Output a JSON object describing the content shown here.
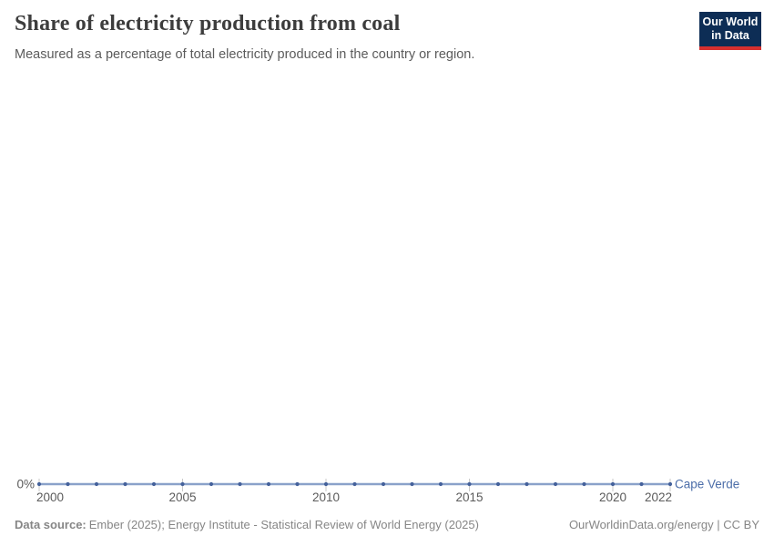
{
  "header": {
    "title": "Share of electricity production from coal",
    "subtitle": "Measured as a percentage of total electricity produced in the country or region.",
    "logo": {
      "line1": "Our World",
      "line2": "in Data"
    }
  },
  "chart_data": {
    "type": "line",
    "title": "Share of electricity production from coal",
    "subtitle": "Measured as a percentage of total electricity produced in the country or region.",
    "series": [
      {
        "name": "Cape Verde",
        "x": [
          2000,
          2001,
          2002,
          2003,
          2004,
          2005,
          2006,
          2007,
          2008,
          2009,
          2010,
          2011,
          2012,
          2013,
          2014,
          2015,
          2016,
          2017,
          2018,
          2019,
          2020,
          2021,
          2022
        ],
        "values": [
          0,
          0,
          0,
          0,
          0,
          0,
          0,
          0,
          0,
          0,
          0,
          0,
          0,
          0,
          0,
          0,
          0,
          0,
          0,
          0,
          0,
          0,
          0
        ]
      }
    ],
    "x_range": [
      2000,
      2022
    ],
    "x_tick_years": [
      2000,
      2005,
      2010,
      2015,
      2020,
      2022
    ],
    "x_tick_labels": [
      "2000",
      "2005",
      "2010",
      "2015",
      "2020",
      "2022"
    ],
    "y_tick_labels": [
      "0%"
    ],
    "y_axis_unit": "%",
    "grid": false,
    "legend_position": "end-of-line-label",
    "colors": {
      "line": "#8aa2ca",
      "marker": "#44619b",
      "series_label": "#4c6ea9",
      "axis_text": "#5b5b5b",
      "tick": "#c9c9c9"
    }
  },
  "footer": {
    "source_label": "Data source:",
    "source_text": "Ember (2025); Energy Institute - Statistical Review of World Energy (2025)",
    "link": "OurWorldinData.org/energy | CC BY"
  }
}
